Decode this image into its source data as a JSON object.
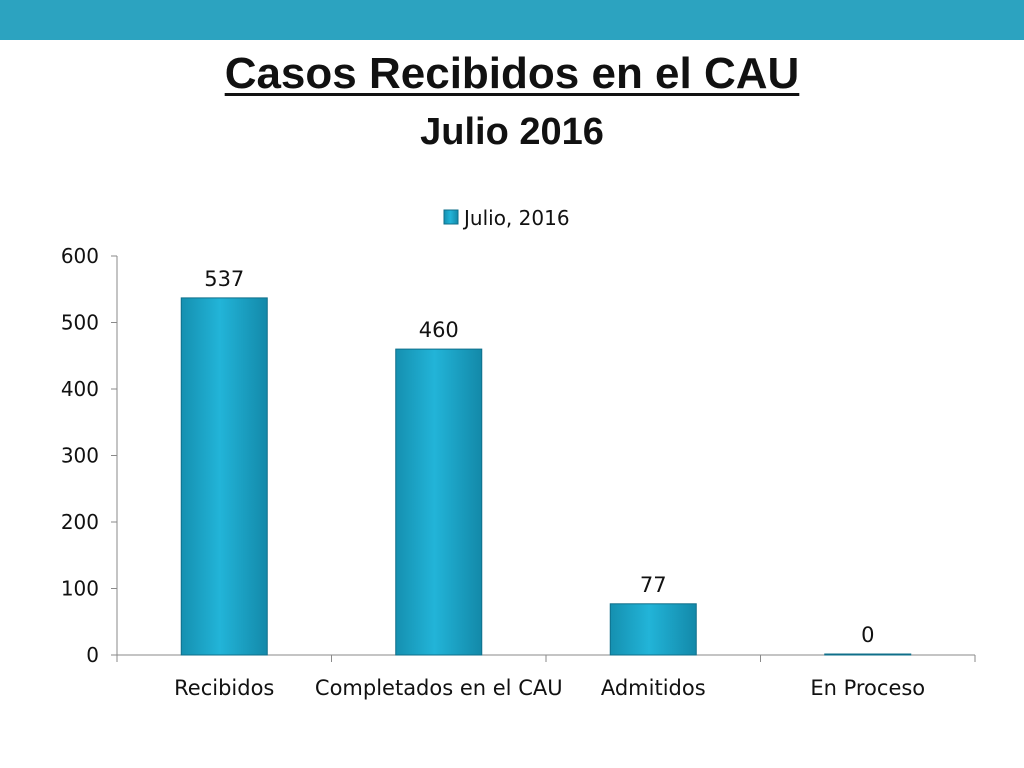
{
  "slide": {
    "accent_color": "#2ca3c0",
    "title": "Casos Recibidos en el CAU",
    "subtitle": "Julio 2016"
  },
  "chart_data": {
    "type": "bar",
    "categories": [
      "Recibidos",
      "Completados en el CAU",
      "Admitidos",
      "En Proceso"
    ],
    "series": [
      {
        "name": "Julio, 2016",
        "values": [
          537,
          460,
          77,
          0
        ],
        "color": "#1aa6c8"
      }
    ],
    "ylim": [
      0,
      600
    ],
    "yticks": [
      0,
      100,
      200,
      300,
      400,
      500,
      600
    ],
    "legend_position": "top",
    "grid": false,
    "data_labels": true
  }
}
